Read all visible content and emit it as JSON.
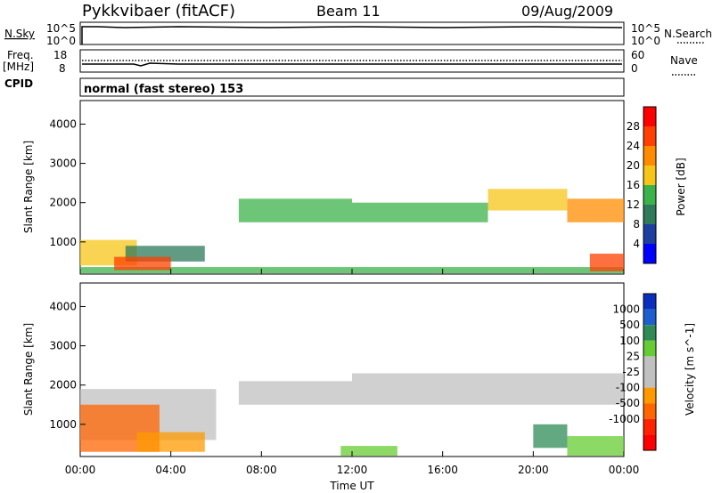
{
  "header": {
    "station": "Pykkvibaer (fitACF)",
    "beam": "Beam 11",
    "date": "09/Aug/2009"
  },
  "nsky_panel": {
    "left_label": "N.Sky",
    "left_top_tick": "10^5",
    "left_bottom_tick": "10^0",
    "right_top_tick": "10^5",
    "right_bottom_tick": "10^0",
    "right_label": "N.Search"
  },
  "freq_panel": {
    "left_label_line1": "Freq.",
    "left_label_line2": "[MHz]",
    "left_top_tick": "18",
    "left_bottom_tick": "8",
    "right_top_tick": "60",
    "right_bottom_tick": "0",
    "right_label": "Nave"
  },
  "cpid_panel": {
    "label": "CPID",
    "mode_text": "normal (fast stereo) 153"
  },
  "colors": {
    "power_scale": [
      "#0000ff",
      "#1c3fa0",
      "#2e7a5a",
      "#3cb34a",
      "#f5c518",
      "#ff8c00",
      "#ff4000",
      "#ff0000"
    ],
    "velocity_scale": [
      "#0a2fbf",
      "#1e5fd0",
      "#2e8b57",
      "#66cc33",
      "#c0c0c0",
      "#c0c0c0",
      "#ff9900",
      "#ff6600",
      "#ff2200",
      "#ff0000"
    ],
    "ground_scatter": "#c0c0c0"
  },
  "chart_data": [
    {
      "type": "heatmap",
      "name": "power",
      "ylabel": "Slant Range [km]",
      "ylim": [
        180,
        4600
      ],
      "yticks": [
        "1000",
        "2000",
        "3000",
        "4000"
      ],
      "ytick_values": [
        1000,
        2000,
        3000,
        4000
      ],
      "colorbar": {
        "label": "Power [dB]",
        "range": [
          0,
          32
        ],
        "ticks": [
          "4",
          "8",
          "12",
          "16",
          "20",
          "24",
          "28"
        ],
        "tick_values": [
          4,
          8,
          12,
          16,
          20,
          24,
          28
        ]
      },
      "bands": [
        {
          "t0": 0.0,
          "t1": 24.0,
          "r0": 200,
          "r1": 360,
          "level": 3
        },
        {
          "t0": 0.0,
          "t1": 2.5,
          "r0": 400,
          "r1": 1050,
          "level": 4
        },
        {
          "t0": 2.0,
          "t1": 5.5,
          "r0": 500,
          "r1": 900,
          "level": 2
        },
        {
          "t0": 1.5,
          "t1": 4.0,
          "r0": 280,
          "r1": 620,
          "level": 6
        },
        {
          "t0": 7.0,
          "t1": 12.0,
          "r0": 1500,
          "r1": 2100,
          "level": 3
        },
        {
          "t0": 12.0,
          "t1": 18.0,
          "r0": 1500,
          "r1": 2000,
          "level": 3
        },
        {
          "t0": 18.0,
          "t1": 21.5,
          "r0": 1800,
          "r1": 2350,
          "level": 4
        },
        {
          "t0": 21.5,
          "t1": 24.0,
          "r0": 1500,
          "r1": 2100,
          "level": 5
        },
        {
          "t0": 22.5,
          "t1": 24.0,
          "r0": 250,
          "r1": 700,
          "level": 6
        }
      ]
    },
    {
      "type": "heatmap",
      "name": "velocity",
      "ylabel": "Slant Range [km]",
      "ylim": [
        180,
        4600
      ],
      "yticks": [
        "1000",
        "2000",
        "3000",
        "4000"
      ],
      "ytick_values": [
        1000,
        2000,
        3000,
        4000
      ],
      "xlabel": "Time UT",
      "xticks": [
        "00:00",
        "04:00",
        "08:00",
        "12:00",
        "16:00",
        "20:00",
        "00:00"
      ],
      "xtick_values": [
        0,
        4,
        8,
        12,
        16,
        20,
        24
      ],
      "colorbar": {
        "label": "Velocity [m s^-1]",
        "ticks": [
          "1000",
          "500",
          "100",
          "25",
          "-25",
          "-100",
          "-500",
          "-1000"
        ],
        "tick_values": [
          1000,
          500,
          100,
          25,
          -25,
          -100,
          -500,
          -1000
        ]
      },
      "bands": [
        {
          "t0": 7.0,
          "t1": 12.0,
          "r0": 1500,
          "r1": 2100,
          "level": 4
        },
        {
          "t0": 12.0,
          "t1": 24.0,
          "r0": 1500,
          "r1": 2300,
          "level": 4
        },
        {
          "t0": 0.0,
          "t1": 6.0,
          "r0": 600,
          "r1": 1900,
          "level": 4
        },
        {
          "t0": 0.0,
          "t1": 3.5,
          "r0": 300,
          "r1": 1500,
          "level": 7
        },
        {
          "t0": 2.5,
          "t1": 5.5,
          "r0": 300,
          "r1": 800,
          "level": 6
        },
        {
          "t0": 11.5,
          "t1": 14.0,
          "r0": 200,
          "r1": 450,
          "level": 3
        },
        {
          "t0": 20.0,
          "t1": 21.5,
          "r0": 400,
          "r1": 1000,
          "level": 2
        },
        {
          "t0": 21.5,
          "t1": 24.0,
          "r0": 200,
          "r1": 700,
          "level": 3
        }
      ]
    }
  ]
}
